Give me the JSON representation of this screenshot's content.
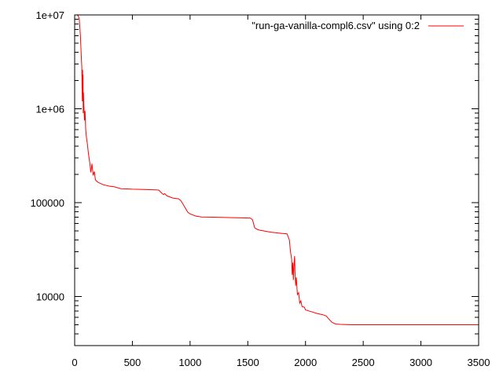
{
  "chart_data": {
    "type": "line",
    "title": "",
    "xlabel": "",
    "ylabel": "",
    "yscale": "log",
    "xlim": [
      0,
      3500
    ],
    "ylim": [
      3000,
      10000000
    ],
    "grid": false,
    "legend_position": "top-right",
    "line_color": "#ff0000",
    "x_ticks": [
      {
        "value": 0,
        "label": "0"
      },
      {
        "value": 500,
        "label": "500"
      },
      {
        "value": 1000,
        "label": "1000"
      },
      {
        "value": 1500,
        "label": "1500"
      },
      {
        "value": 2000,
        "label": "2000"
      },
      {
        "value": 2500,
        "label": "2500"
      },
      {
        "value": 3000,
        "label": "3000"
      },
      {
        "value": 3500,
        "label": "3500"
      }
    ],
    "y_ticks": [
      {
        "value": 10000,
        "label": "10000"
      },
      {
        "value": 100000,
        "label": "100000"
      },
      {
        "value": 1000000,
        "label": "1e+06"
      },
      {
        "value": 10000000,
        "label": "1e+07"
      }
    ],
    "series": [
      {
        "name": "\"run-ga-vanilla-compl6.csv\" using 0:2",
        "color": "#ff0000",
        "points": [
          [
            20,
            10000000
          ],
          [
            30,
            9800000
          ],
          [
            40,
            9000000
          ],
          [
            50,
            6000000
          ],
          [
            58,
            3500000
          ],
          [
            62,
            2800000
          ],
          [
            66,
            1200000
          ],
          [
            68,
            2600000
          ],
          [
            70,
            1800000
          ],
          [
            72,
            2300000
          ],
          [
            74,
            900000
          ],
          [
            76,
            1500000
          ],
          [
            80,
            1100000
          ],
          [
            85,
            750000
          ],
          [
            90,
            950000
          ],
          [
            95,
            620000
          ],
          [
            100,
            520000
          ],
          [
            110,
            420000
          ],
          [
            120,
            330000
          ],
          [
            130,
            270000
          ],
          [
            140,
            210000
          ],
          [
            150,
            260000
          ],
          [
            160,
            195000
          ],
          [
            170,
            215000
          ],
          [
            180,
            175000
          ],
          [
            200,
            165000
          ],
          [
            250,
            155000
          ],
          [
            300,
            150000
          ],
          [
            350,
            147000
          ],
          [
            400,
            141000
          ],
          [
            450,
            140000
          ],
          [
            500,
            139000
          ],
          [
            600,
            138000
          ],
          [
            700,
            137000
          ],
          [
            730,
            136000
          ],
          [
            750,
            128000
          ],
          [
            770,
            122000
          ],
          [
            780,
            125000
          ],
          [
            800,
            118000
          ],
          [
            850,
            112000
          ],
          [
            900,
            110000
          ],
          [
            920,
            105000
          ],
          [
            940,
            96000
          ],
          [
            960,
            87000
          ],
          [
            980,
            79000
          ],
          [
            1000,
            76000
          ],
          [
            1050,
            72000
          ],
          [
            1100,
            70500
          ],
          [
            1200,
            70000
          ],
          [
            1300,
            69500
          ],
          [
            1400,
            69000
          ],
          [
            1520,
            68500
          ],
          [
            1540,
            66000
          ],
          [
            1560,
            54000
          ],
          [
            1580,
            52000
          ],
          [
            1600,
            51000
          ],
          [
            1700,
            48500
          ],
          [
            1800,
            47000
          ],
          [
            1840,
            46500
          ],
          [
            1860,
            40000
          ],
          [
            1870,
            30000
          ],
          [
            1880,
            25000
          ],
          [
            1885,
            17000
          ],
          [
            1890,
            23000
          ],
          [
            1895,
            15000
          ],
          [
            1900,
            21000
          ],
          [
            1905,
            27000
          ],
          [
            1910,
            17000
          ],
          [
            1915,
            13000
          ],
          [
            1920,
            16000
          ],
          [
            1930,
            10500
          ],
          [
            1940,
            11000
          ],
          [
            1950,
            8500
          ],
          [
            1960,
            9000
          ],
          [
            1970,
            7800
          ],
          [
            1990,
            7700
          ],
          [
            2000,
            7200
          ],
          [
            2050,
            6900
          ],
          [
            2100,
            6600
          ],
          [
            2150,
            6400
          ],
          [
            2180,
            6200
          ],
          [
            2200,
            5800
          ],
          [
            2230,
            5300
          ],
          [
            2260,
            5100
          ],
          [
            2300,
            5050
          ],
          [
            2400,
            5000
          ],
          [
            3000,
            5000
          ],
          [
            3500,
            5000
          ]
        ]
      }
    ]
  }
}
